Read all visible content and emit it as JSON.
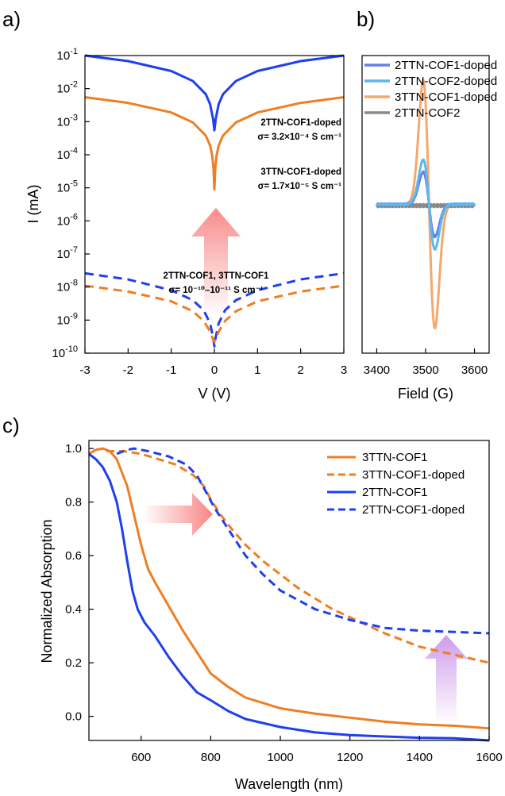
{
  "chart_data": [
    {
      "panel": "a)",
      "type": "line",
      "xlabel": "V (V)",
      "ylabel": "I (mA)",
      "xlim": [
        -3,
        3
      ],
      "ylim": [
        1e-10,
        0.1
      ],
      "yscale": "log",
      "x_ticks": [
        -3,
        -2,
        -1,
        0,
        1,
        2,
        3
      ],
      "y_ticks": [
        {
          "value": 1e-10,
          "exp": "-10"
        },
        {
          "value": 1e-09,
          "exp": "-9"
        },
        {
          "value": 1e-08,
          "exp": "-8"
        },
        {
          "value": 1e-07,
          "exp": "-7"
        },
        {
          "value": 1e-06,
          "exp": "-6"
        },
        {
          "value": 1e-05,
          "exp": "-5"
        },
        {
          "value": 0.0001,
          "exp": "-4"
        },
        {
          "value": 0.001,
          "exp": "-3"
        },
        {
          "value": 0.01,
          "exp": "-2"
        },
        {
          "value": 0.1,
          "exp": "-1"
        }
      ],
      "series": [
        {
          "style": "solid",
          "color": "#1f3ff0",
          "x": [
            -3,
            -2,
            -1,
            -0.5,
            -0.2,
            -0.1,
            -0.03,
            0,
            0.03,
            0.1,
            0.2,
            0.5,
            1,
            2,
            3
          ],
          "y": [
            0.1,
            0.068,
            0.034,
            0.017,
            0.0068,
            0.0034,
            0.0012,
            0.00055,
            0.0012,
            0.0034,
            0.0068,
            0.017,
            0.034,
            0.068,
            0.1
          ]
        },
        {
          "style": "solid",
          "color": "#ef7e22",
          "x": [
            -3,
            -2,
            -1,
            -0.5,
            -0.2,
            -0.1,
            -0.05,
            -0.02,
            0,
            0.02,
            0.05,
            0.1,
            0.2,
            0.5,
            1,
            2,
            3
          ],
          "y": [
            0.0055,
            0.0037,
            0.0019,
            0.00095,
            0.00038,
            0.00019,
            9.5e-05,
            3.8e-05,
            9e-06,
            3.8e-05,
            9.5e-05,
            0.00019,
            0.00038,
            0.00095,
            0.0019,
            0.0037,
            0.0055
          ]
        },
        {
          "style": "dashed",
          "color": "#1f3ff0",
          "x": [
            -3,
            -2,
            -1,
            -0.5,
            -0.25,
            -0.1,
            -0.03,
            0,
            0.03,
            0.1,
            0.25,
            0.5,
            1,
            2,
            3
          ],
          "y": [
            2.6e-08,
            1.7e-08,
            8e-09,
            4e-09,
            2e-09,
            8e-10,
            3e-10,
            1.6e-10,
            3e-10,
            8e-10,
            2e-09,
            4e-09,
            8e-09,
            1.7e-08,
            2.6e-08
          ]
        },
        {
          "style": "dashed",
          "color": "#ef7e22",
          "x": [
            -3,
            -2,
            -1,
            -0.5,
            -0.25,
            -0.1,
            -0.03,
            0,
            0.03,
            0.1,
            0.25,
            0.5,
            1,
            2,
            3
          ],
          "y": [
            1.1e-08,
            7.3e-09,
            3.7e-09,
            1.85e-09,
            9.5e-10,
            4.5e-10,
            2.6e-10,
            2.2e-10,
            2.6e-10,
            4.5e-10,
            9.5e-10,
            1.85e-09,
            3.7e-09,
            7.3e-09,
            1.1e-08
          ]
        }
      ],
      "annotations": [
        {
          "id": "a1",
          "text": "2TTN-COF1-doped"
        },
        {
          "id": "a2",
          "text": "σ= 3.2×10⁻⁴ S cm⁻¹"
        },
        {
          "id": "a3",
          "text": "3TTN-COF1-doped"
        },
        {
          "id": "a4",
          "text": "σ= 1.7×10⁻⁵ S cm⁻¹"
        },
        {
          "id": "a5",
          "text": "2TTN-COF1, 3TTN-COF1"
        },
        {
          "id": "a6",
          "text": "σ= 10⁻¹⁰–10⁻¹¹ S cm⁻¹"
        }
      ],
      "arrow_color": "#f76f6f"
    },
    {
      "panel": "b)",
      "type": "line",
      "xlabel": "Field (G)",
      "ylabel": "",
      "xlim": [
        3370,
        3630
      ],
      "ylim": [
        -1.2,
        1.2
      ],
      "x_ticks": [
        3400,
        3500,
        3600
      ],
      "legend": "top-right",
      "series": [
        {
          "name": "2TTN-COF1-doped",
          "color": "#6a7fe6",
          "amp": 0.26,
          "baseline": 0
        },
        {
          "name": "2TTN-COF2-doped",
          "color": "#5ab8f0",
          "amp": 0.36,
          "baseline": 0
        },
        {
          "name": "3TTN-COF1-doped",
          "color": "#f5a86c",
          "amp": 1.0,
          "baseline": 0
        },
        {
          "name": "2TTN-COF2",
          "color": "#8a8a8a",
          "amp": 0.0,
          "baseline": -0.01
        }
      ],
      "signal": {
        "center": 3507,
        "width": 12,
        "start": 3400,
        "end": 3600
      }
    },
    {
      "panel": "c)",
      "type": "line",
      "xlabel": "Wavelength (nm)",
      "ylabel": "Normalized Absorption",
      "xlim": [
        450,
        1600
      ],
      "ylim": [
        -0.09,
        1.03
      ],
      "x_ticks": [
        600,
        800,
        1000,
        1200,
        1400,
        1600
      ],
      "y_ticks": [
        0.0,
        0.2,
        0.4,
        0.6,
        0.8,
        1.0
      ],
      "y_tick_labels": [
        "0.0",
        "0.2",
        "0.4",
        "0.6",
        "0.8",
        "1.0"
      ],
      "legend": "top-right",
      "series": [
        {
          "name": "3TTN-COF1",
          "style": "solid",
          "color": "#ef7e22",
          "x": [
            450,
            470,
            490,
            510,
            530,
            560,
            580,
            600,
            620,
            640,
            680,
            720,
            760,
            800,
            850,
            900,
            1000,
            1100,
            1200,
            1300,
            1400,
            1500,
            1600
          ],
          "y": [
            0.98,
            0.995,
            1.0,
            0.99,
            0.96,
            0.86,
            0.75,
            0.64,
            0.55,
            0.5,
            0.41,
            0.32,
            0.24,
            0.16,
            0.11,
            0.07,
            0.03,
            0.01,
            -0.005,
            -0.02,
            -0.03,
            -0.035,
            -0.045
          ]
        },
        {
          "name": "3TTN-COF1-doped",
          "style": "dashed",
          "color": "#ef7e22",
          "x": [
            500,
            550,
            600,
            650,
            700,
            750,
            780,
            800,
            830,
            860,
            900,
            950,
            1000,
            1050,
            1100,
            1150,
            1200,
            1300,
            1400,
            1500,
            1600
          ],
          "y": [
            0.99,
            0.99,
            0.98,
            0.96,
            0.94,
            0.9,
            0.86,
            0.81,
            0.75,
            0.7,
            0.64,
            0.58,
            0.53,
            0.48,
            0.44,
            0.4,
            0.37,
            0.31,
            0.26,
            0.23,
            0.2
          ]
        },
        {
          "name": "2TTN-COF1",
          "style": "solid",
          "color": "#1f3ff0",
          "x": [
            450,
            470,
            490,
            510,
            530,
            545,
            560,
            575,
            590,
            610,
            640,
            680,
            720,
            760,
            800,
            850,
            900,
            1000,
            1100,
            1200,
            1300,
            1400,
            1500,
            1600
          ],
          "y": [
            0.98,
            0.96,
            0.93,
            0.88,
            0.8,
            0.7,
            0.58,
            0.47,
            0.4,
            0.35,
            0.3,
            0.22,
            0.15,
            0.09,
            0.06,
            0.02,
            -0.01,
            -0.04,
            -0.06,
            -0.07,
            -0.075,
            -0.08,
            -0.082,
            -0.09
          ]
        },
        {
          "name": "2TTN-COF1-doped",
          "style": "dashed",
          "color": "#1f3ff0",
          "x": [
            530,
            560,
            580,
            620,
            680,
            730,
            760,
            790,
            810,
            840,
            870,
            900,
            950,
            1000,
            1100,
            1200,
            1300,
            1400,
            1500,
            1600
          ],
          "y": [
            0.98,
            0.995,
            1.0,
            0.99,
            0.97,
            0.94,
            0.9,
            0.83,
            0.78,
            0.72,
            0.66,
            0.6,
            0.53,
            0.47,
            0.4,
            0.36,
            0.33,
            0.32,
            0.315,
            0.31
          ]
        }
      ],
      "arrow_colors": {
        "horizontal": "#f76f6f",
        "vertical": "#c68be6"
      }
    }
  ]
}
